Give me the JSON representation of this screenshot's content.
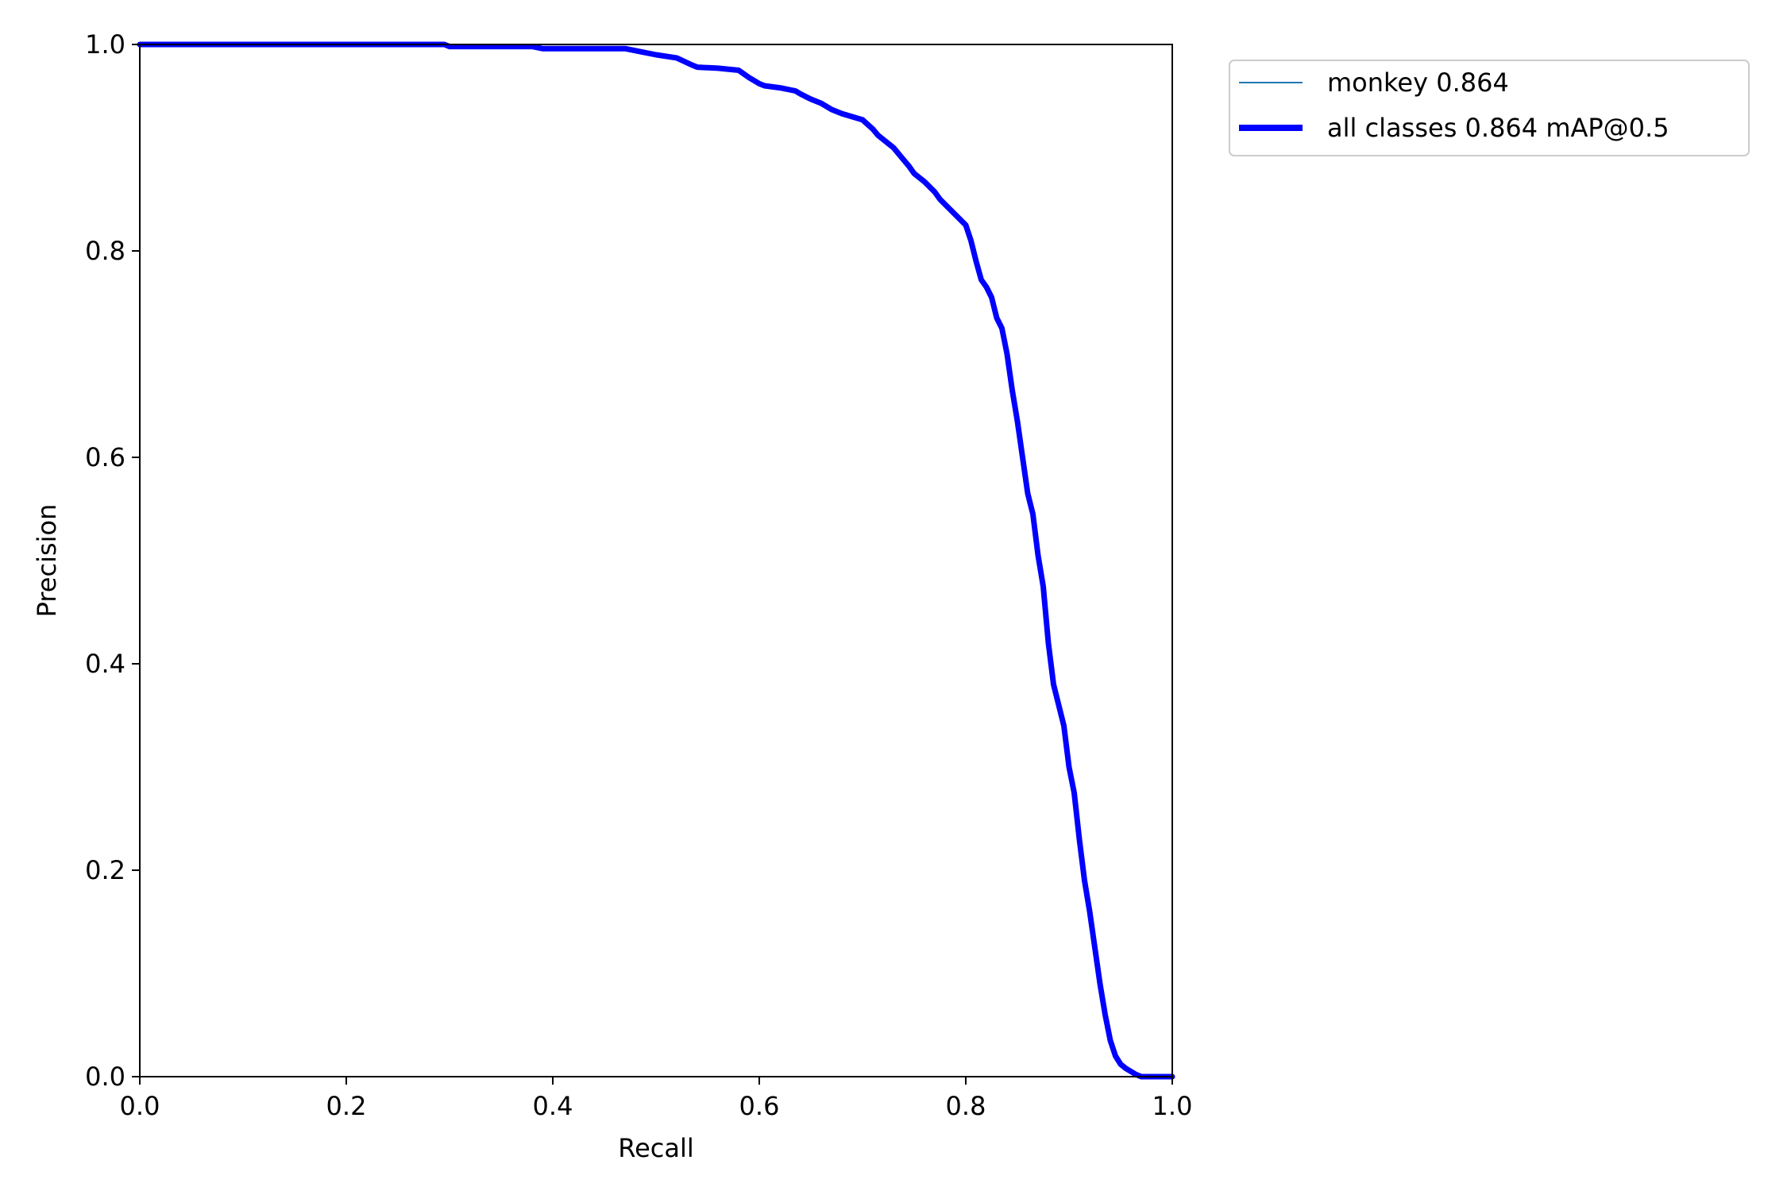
{
  "chart_data": {
    "type": "line",
    "title": "",
    "xlabel": "Recall",
    "ylabel": "Precision",
    "xlim": [
      0.0,
      1.0
    ],
    "ylim": [
      0.0,
      1.0
    ],
    "xticks": [
      "0.0",
      "0.2",
      "0.4",
      "0.6",
      "0.8",
      "1.0"
    ],
    "yticks": [
      "0.0",
      "0.2",
      "0.4",
      "0.6",
      "0.8",
      "1.0"
    ],
    "grid": false,
    "legend_position": "outside-top-right",
    "series": [
      {
        "name": "monkey 0.864",
        "color": "#1f77b4",
        "linewidth": "thin",
        "x": [
          0.0,
          0.1,
          0.2,
          0.295,
          0.3,
          0.38,
          0.39,
          0.47,
          0.48,
          0.5,
          0.52,
          0.535,
          0.54,
          0.56,
          0.58,
          0.59,
          0.6,
          0.605,
          0.62,
          0.635,
          0.64,
          0.65,
          0.66,
          0.67,
          0.68,
          0.69,
          0.7,
          0.71,
          0.715,
          0.72,
          0.73,
          0.74,
          0.745,
          0.75,
          0.76,
          0.77,
          0.775,
          0.785,
          0.79,
          0.8,
          0.805,
          0.81,
          0.815,
          0.82,
          0.825,
          0.83,
          0.835,
          0.84,
          0.845,
          0.85,
          0.855,
          0.86,
          0.865,
          0.87,
          0.875,
          0.88,
          0.885,
          0.89,
          0.895,
          0.9,
          0.905,
          0.91,
          0.915,
          0.92,
          0.925,
          0.93,
          0.935,
          0.94,
          0.945,
          0.95,
          0.955,
          0.96,
          0.965,
          0.97,
          0.975,
          0.98,
          0.99,
          1.0
        ],
        "y": [
          1.0,
          1.0,
          1.0,
          1.0,
          0.998,
          0.998,
          0.996,
          0.996,
          0.994,
          0.99,
          0.987,
          0.98,
          0.978,
          0.977,
          0.975,
          0.968,
          0.962,
          0.96,
          0.958,
          0.955,
          0.952,
          0.947,
          0.943,
          0.937,
          0.933,
          0.93,
          0.927,
          0.918,
          0.912,
          0.908,
          0.9,
          0.888,
          0.882,
          0.875,
          0.867,
          0.857,
          0.85,
          0.84,
          0.835,
          0.825,
          0.81,
          0.79,
          0.772,
          0.765,
          0.755,
          0.735,
          0.725,
          0.7,
          0.665,
          0.635,
          0.6,
          0.565,
          0.545,
          0.505,
          0.475,
          0.42,
          0.38,
          0.36,
          0.34,
          0.3,
          0.275,
          0.23,
          0.19,
          0.16,
          0.125,
          0.09,
          0.06,
          0.035,
          0.02,
          0.012,
          0.008,
          0.005,
          0.002,
          0.0,
          0.0,
          0.0,
          0.0,
          0.0
        ]
      },
      {
        "name": "all classes 0.864 mAP@0.5",
        "color": "#0000ff",
        "linewidth": "thick",
        "x": [
          0.0,
          0.1,
          0.2,
          0.295,
          0.3,
          0.38,
          0.39,
          0.47,
          0.48,
          0.5,
          0.52,
          0.535,
          0.54,
          0.56,
          0.58,
          0.59,
          0.6,
          0.605,
          0.62,
          0.635,
          0.64,
          0.65,
          0.66,
          0.67,
          0.68,
          0.69,
          0.7,
          0.71,
          0.715,
          0.72,
          0.73,
          0.74,
          0.745,
          0.75,
          0.76,
          0.77,
          0.775,
          0.785,
          0.79,
          0.8,
          0.805,
          0.81,
          0.815,
          0.82,
          0.825,
          0.83,
          0.835,
          0.84,
          0.845,
          0.85,
          0.855,
          0.86,
          0.865,
          0.87,
          0.875,
          0.88,
          0.885,
          0.89,
          0.895,
          0.9,
          0.905,
          0.91,
          0.915,
          0.92,
          0.925,
          0.93,
          0.935,
          0.94,
          0.945,
          0.95,
          0.955,
          0.96,
          0.965,
          0.97,
          0.975,
          0.98,
          0.99,
          1.0
        ],
        "y": [
          1.0,
          1.0,
          1.0,
          1.0,
          0.998,
          0.998,
          0.996,
          0.996,
          0.994,
          0.99,
          0.987,
          0.98,
          0.978,
          0.977,
          0.975,
          0.968,
          0.962,
          0.96,
          0.958,
          0.955,
          0.952,
          0.947,
          0.943,
          0.937,
          0.933,
          0.93,
          0.927,
          0.918,
          0.912,
          0.908,
          0.9,
          0.888,
          0.882,
          0.875,
          0.867,
          0.857,
          0.85,
          0.84,
          0.835,
          0.825,
          0.81,
          0.79,
          0.772,
          0.765,
          0.755,
          0.735,
          0.725,
          0.7,
          0.665,
          0.635,
          0.6,
          0.565,
          0.545,
          0.505,
          0.475,
          0.42,
          0.38,
          0.36,
          0.34,
          0.3,
          0.275,
          0.23,
          0.19,
          0.16,
          0.125,
          0.09,
          0.06,
          0.035,
          0.02,
          0.012,
          0.008,
          0.005,
          0.002,
          0.0,
          0.0,
          0.0,
          0.0,
          0.0
        ]
      }
    ]
  }
}
